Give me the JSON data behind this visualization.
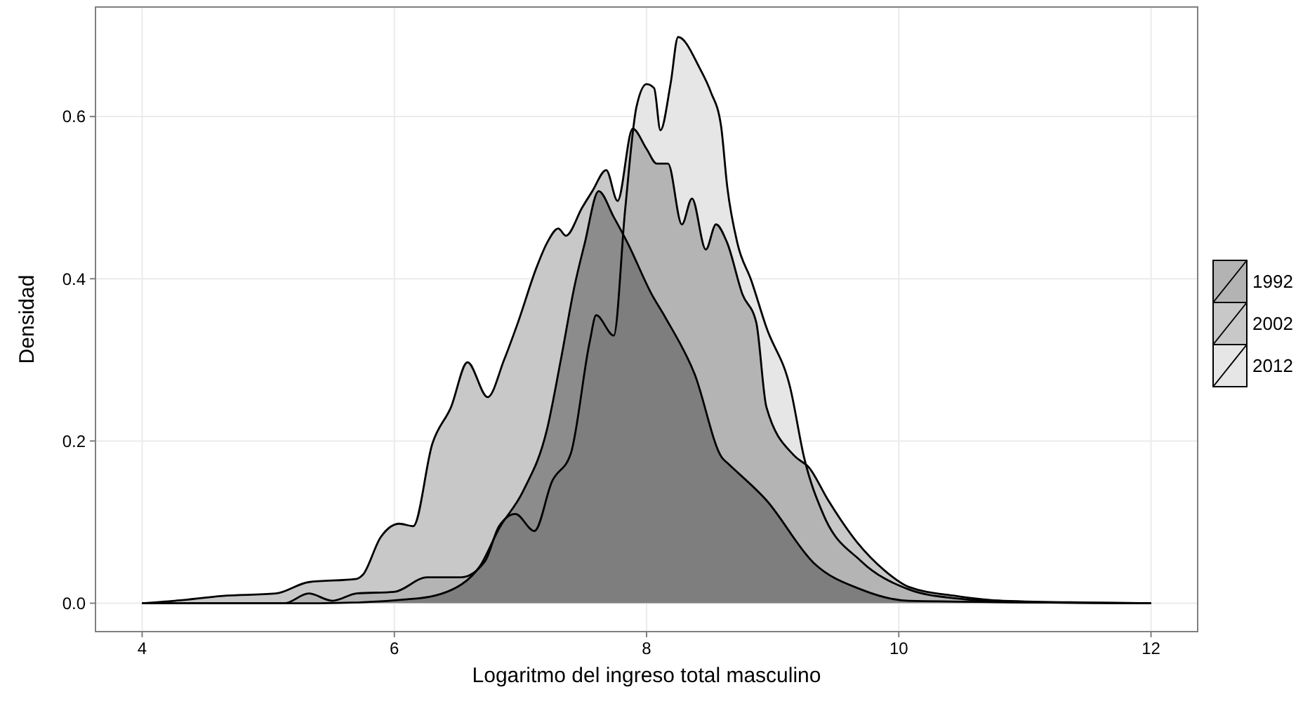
{
  "chart_data": {
    "type": "area",
    "xlabel": "Logaritmo del ingreso total masculino",
    "ylabel": "Densidad",
    "xlim": [
      3.63,
      12.37
    ],
    "ylim": [
      -0.035,
      0.735
    ],
    "xticks": [
      4,
      6,
      8,
      10,
      12
    ],
    "yticks": [
      {
        "value": 0,
        "label": "0.0"
      },
      0.2,
      0.4,
      0.6
    ],
    "grid": true,
    "legend": "right",
    "series": [
      {
        "name": "1992",
        "color": "#b3b3b3",
        "x": [
          4,
          5.4,
          6.19,
          6.53,
          6.68,
          6.83,
          7.02,
          7.21,
          7.32,
          7.43,
          7.51,
          7.62,
          7.74,
          7.85,
          8.04,
          8.15,
          8.38,
          8.6,
          8.64,
          8.95,
          9.33,
          9.7,
          10.08,
          12
        ],
        "values": [
          0,
          0,
          0.006,
          0.023,
          0.046,
          0.092,
          0.138,
          0.214,
          0.3,
          0.392,
          0.444,
          0.508,
          0.476,
          0.444,
          0.381,
          0.352,
          0.283,
          0.179,
          0.173,
          0.127,
          0.049,
          0.017,
          0.003,
          0
        ]
      },
      {
        "name": "2002",
        "color": "#c8c8c8",
        "x": [
          4,
          4.26,
          4.64,
          5.06,
          5.32,
          5.7,
          5.75,
          5.89,
          6.04,
          6.15,
          6.3,
          6.45,
          6.58,
          6.74,
          6.87,
          6.98,
          7.13,
          7.21,
          7.3,
          7.36,
          7.49,
          7.57,
          7.68,
          7.77,
          7.89,
          8.0,
          8.08,
          8.17,
          8.28,
          8.36,
          8.47,
          8.55,
          8.64,
          8.76,
          8.87,
          8.95,
          9.17,
          9.29,
          9.44,
          9.67,
          9.89,
          10.08,
          10.45,
          10.83,
          12
        ],
        "values": [
          0,
          0.003,
          0.009,
          0.012,
          0.026,
          0.03,
          0.035,
          0.081,
          0.098,
          0.095,
          0.196,
          0.242,
          0.297,
          0.254,
          0.3,
          0.346,
          0.415,
          0.444,
          0.462,
          0.453,
          0.488,
          0.508,
          0.534,
          0.496,
          0.585,
          0.56,
          0.542,
          0.542,
          0.467,
          0.499,
          0.436,
          0.467,
          0.444,
          0.381,
          0.346,
          0.242,
          0.182,
          0.167,
          0.127,
          0.075,
          0.04,
          0.02,
          0.009,
          0.003,
          0
        ]
      },
      {
        "name": "2012",
        "color": "#e6e6e6",
        "x": [
          4,
          5.13,
          5.32,
          5.51,
          5.7,
          6.0,
          6.26,
          6.53,
          6.72,
          6.83,
          6.96,
          7.11,
          7.25,
          7.4,
          7.55,
          7.6,
          7.74,
          7.83,
          7.92,
          8.0,
          8.06,
          8.11,
          8.19,
          8.25,
          8.42,
          8.51,
          8.59,
          8.64,
          8.72,
          8.83,
          8.95,
          9.14,
          9.25,
          9.4,
          9.7,
          10.08,
          10.45,
          11.02,
          12
        ],
        "values": [
          0,
          0,
          0.012,
          0.003,
          0.012,
          0.014,
          0.032,
          0.032,
          0.052,
          0.095,
          0.11,
          0.089,
          0.15,
          0.185,
          0.323,
          0.355,
          0.33,
          0.485,
          0.612,
          0.64,
          0.635,
          0.583,
          0.64,
          0.698,
          0.66,
          0.63,
          0.589,
          0.513,
          0.444,
          0.398,
          0.34,
          0.265,
          0.179,
          0.11,
          0.052,
          0.017,
          0.006,
          0.001,
          0
        ]
      }
    ]
  }
}
